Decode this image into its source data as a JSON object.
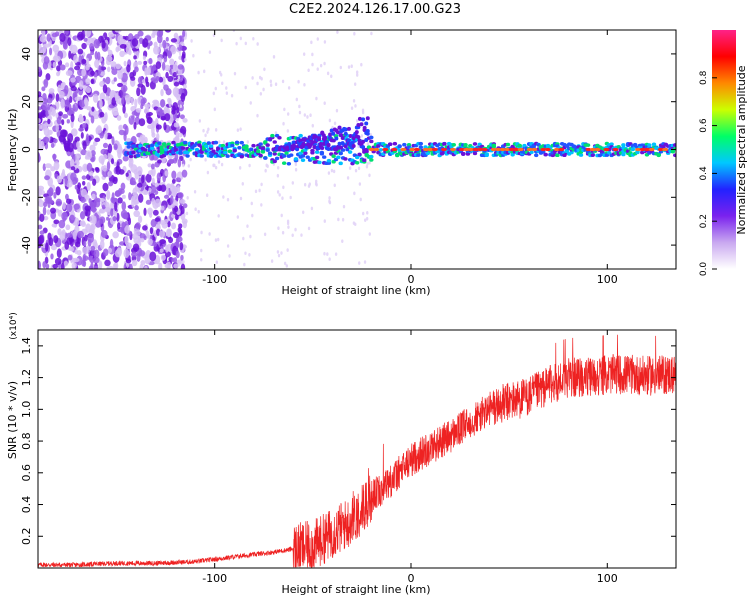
{
  "title": "C2E2.2024.126.17.00.G23",
  "chart_data": [
    {
      "type": "heatmap",
      "xlabel": "Height of straight line (km)",
      "ylabel": "Frequency (Hz)",
      "xlim": [
        -190,
        135
      ],
      "ylim": [
        -50,
        50
      ],
      "xticks": [
        -100,
        0,
        100
      ],
      "yticks": [
        -40,
        -20,
        0,
        20,
        40
      ],
      "grid": false,
      "colorbar": {
        "label": "Normalized spectral amplitude",
        "range": [
          0,
          1
        ],
        "ticks": [
          "0.0",
          "0.2",
          "0.4",
          "0.6",
          "0.8"
        ],
        "colors": [
          "#ffffff",
          "#c9a8f0",
          "#7a22ee",
          "#2222ff",
          "#00c8ff",
          "#00ff66",
          "#ccff00",
          "#ff8800",
          "#ff0000",
          "#ff2288"
        ]
      }
    },
    {
      "type": "line",
      "xlabel": "Height of straight line (km)",
      "ylabel": "SNR (10 * v/v)",
      "y_scale_note": "(x10⁴)",
      "xlim": [
        -190,
        135
      ],
      "ylim": [
        0,
        1.5
      ],
      "xticks": [
        -100,
        0,
        100
      ],
      "yticks": [
        0.2,
        0.4,
        0.6,
        0.8,
        1.0,
        1.2,
        1.4
      ],
      "line_color": "#ee2222",
      "x": [
        -190,
        -170,
        -150,
        -130,
        -110,
        -90,
        -70,
        -50,
        -40,
        -30,
        -20,
        -10,
        0,
        10,
        20,
        30,
        40,
        50,
        60,
        70,
        80,
        90,
        100,
        110,
        120,
        135
      ],
      "y": [
        0.02,
        0.02,
        0.03,
        0.03,
        0.04,
        0.07,
        0.1,
        0.14,
        0.22,
        0.3,
        0.45,
        0.55,
        0.68,
        0.76,
        0.83,
        0.92,
        1.0,
        1.05,
        1.08,
        1.15,
        1.2,
        1.2,
        1.22,
        1.22,
        1.21,
        1.22
      ]
    }
  ]
}
